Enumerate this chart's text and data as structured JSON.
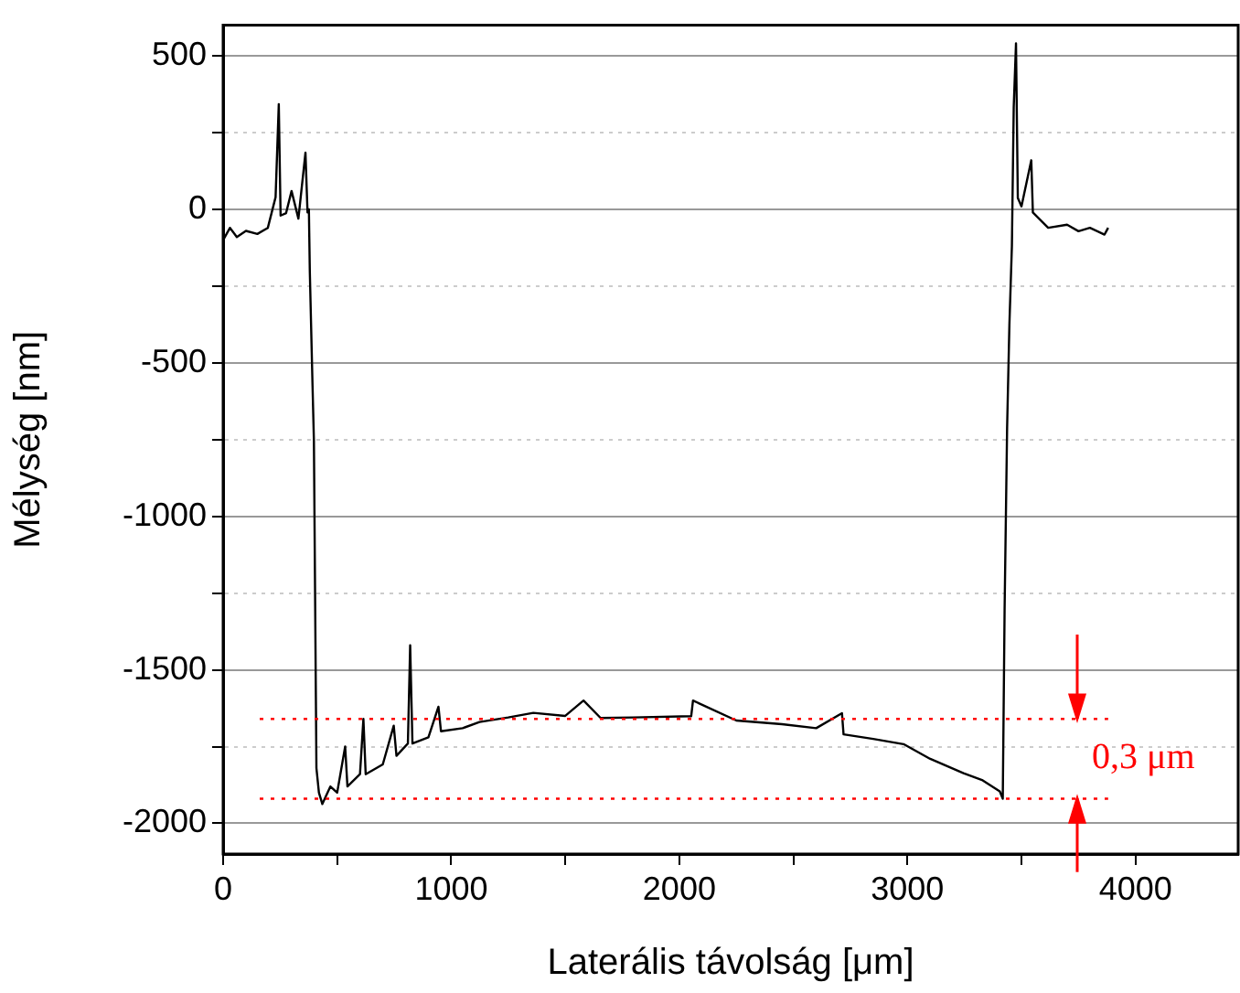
{
  "chart_data": {
    "type": "line",
    "xlabel": "Laterális távolság [μm]",
    "ylabel": "Mélység [nm]",
    "xlim": [
      0,
      4450
    ],
    "ylim": [
      -2100,
      600
    ],
    "xticks": [
      0,
      {
        "value": 500,
        "label": null
      },
      1000,
      {
        "value": 1500,
        "label": null
      },
      2000,
      {
        "value": 2500,
        "label": null
      },
      3000,
      {
        "value": 3500,
        "label": null
      },
      4000
    ],
    "yticks": [
      -2000,
      {
        "value": -1750,
        "label": null
      },
      -1500,
      {
        "value": -1250,
        "label": null
      },
      -1000,
      {
        "value": -750,
        "label": null
      },
      -500,
      {
        "value": -250,
        "label": null
      },
      0,
      {
        "value": 250,
        "label": null
      },
      500
    ],
    "grid": "y",
    "legend": false,
    "marker": "none",
    "line_style": "solid",
    "ref_lines": [
      {
        "axis": "y",
        "value": -1660,
        "color": "#ff0000",
        "line_style": "dotted"
      },
      {
        "axis": "y",
        "value": -1920,
        "color": "#ff0000",
        "line_style": "dotted"
      }
    ],
    "annotations": [
      "0,3 μm"
    ],
    "series": [
      {
        "color": "#000000",
        "x": [
          0,
          30,
          60,
          100,
          150,
          196,
          230,
          244,
          252,
          276,
          300,
          330,
          361,
          370,
          376,
          380,
          392,
          398,
          409,
          420,
          435,
          470,
          500,
          535,
          545,
          600,
          615,
          625,
          700,
          748,
          760,
          810,
          820,
          830,
          900,
          944,
          955,
          1050,
          1124,
          1250,
          1360,
          1500,
          1580,
          1655,
          1800,
          2052,
          2060,
          2250,
          2450,
          2600,
          2713,
          2720,
          2850,
          2983,
          3100,
          3246,
          3330,
          3405,
          3418,
          3426,
          3437,
          3447,
          3458,
          3466,
          3476,
          3484,
          3500,
          3543,
          3550,
          3617,
          3700,
          3750,
          3800,
          3864,
          3880
        ],
        "values": [
          -100,
          -60,
          -90,
          -70,
          -80,
          -60,
          40,
          343,
          -20,
          -12,
          60,
          -30,
          185,
          -10,
          0,
          -200,
          -575,
          -752,
          -1820,
          -1900,
          -1937,
          -1880,
          -1900,
          -1750,
          -1880,
          -1840,
          -1660,
          -1840,
          -1808,
          -1682,
          -1780,
          -1740,
          -1420,
          -1740,
          -1720,
          -1620,
          -1700,
          -1690,
          -1670,
          -1655,
          -1640,
          -1650,
          -1600,
          -1657,
          -1655,
          -1651,
          -1600,
          -1665,
          -1677,
          -1690,
          -1641,
          -1710,
          -1725,
          -1742,
          -1790,
          -1837,
          -1860,
          -1896,
          -1920,
          -1305,
          -712,
          -377,
          -120,
          333,
          541,
          37,
          10,
          160,
          -10,
          -60,
          -50,
          -71,
          -60,
          -82,
          -60
        ]
      }
    ]
  }
}
